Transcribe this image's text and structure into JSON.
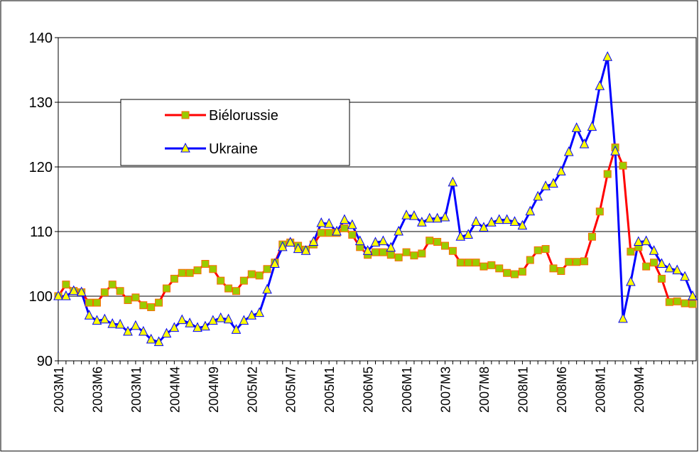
{
  "chart_data": {
    "type": "line",
    "categories": [
      "2003M1",
      null,
      null,
      null,
      null,
      "2003M6",
      null,
      null,
      null,
      null,
      "2003M1",
      null,
      null,
      null,
      null,
      "2004M4",
      null,
      null,
      null,
      null,
      "2004M9",
      null,
      null,
      null,
      null,
      "2005M2",
      null,
      null,
      null,
      null,
      "2005M7",
      null,
      null,
      null,
      null,
      "2005M1",
      null,
      null,
      null,
      null,
      "2006M5",
      null,
      null,
      null,
      null,
      "2006M1",
      null,
      null,
      null,
      null,
      "2007M3",
      null,
      null,
      null,
      null,
      "2007M8",
      null,
      null,
      null,
      null,
      "2008M1",
      null,
      null,
      null,
      null,
      "2008M6",
      null,
      null,
      null,
      null,
      "2008M1",
      null,
      null,
      null,
      null,
      "2009M4",
      null,
      null,
      null,
      null,
      null,
      null,
      null
    ],
    "series": [
      {
        "name": "Biélorussie",
        "color": "#ff0000",
        "marker": "square",
        "marker_fill": "#99cc00",
        "values": [
          100,
          101.8,
          100.8,
          100.6,
          99,
          99,
          100.6,
          101.8,
          100.8,
          99.4,
          99.8,
          98.6,
          98.3,
          99,
          101.2,
          102.7,
          103.6,
          103.6,
          104,
          105,
          104.2,
          102.4,
          101.2,
          100.8,
          102.4,
          103.4,
          103.2,
          104.2,
          105.2,
          108,
          108.3,
          107.8,
          107.2,
          108,
          109.8,
          109.8,
          109.8,
          110.5,
          109.5,
          107.6,
          106.4,
          106.8,
          106.8,
          106.4,
          106,
          106.8,
          106.3,
          106.6,
          108.6,
          108.4,
          107.8,
          107,
          105.2,
          105.2,
          105.2,
          104.6,
          104.8,
          104.3,
          103.6,
          103.4,
          103.8,
          105.6,
          107.1,
          107.3,
          104.3,
          103.9,
          105.3,
          105.3,
          105.4,
          109.2,
          113.1,
          118.9,
          123,
          120.2,
          106.9,
          107.6,
          104.6,
          105.2,
          102.7,
          99.1,
          99.2,
          98.9,
          98.8
        ]
      },
      {
        "name": "Ukraine",
        "color": "#0000ff",
        "marker": "triangle",
        "marker_fill": "#ffff00",
        "values": [
          100,
          100,
          100.8,
          100.6,
          97,
          96.2,
          96.4,
          95.7,
          95.6,
          94.5,
          95.4,
          94.5,
          93.3,
          92.9,
          94.2,
          95.1,
          96.3,
          95.8,
          95.1,
          95.3,
          96.2,
          96.6,
          96.4,
          94.8,
          96.2,
          97,
          97.4,
          101,
          105,
          107.6,
          108.3,
          107.3,
          107,
          108.4,
          111.3,
          111.2,
          110,
          111.8,
          111,
          108.5,
          107,
          108.3,
          108.5,
          107.5,
          110,
          112.5,
          112.4,
          111.4,
          112,
          112,
          112.2,
          117.6,
          109.2,
          109.5,
          111.5,
          110.6,
          111.4,
          111.8,
          111.8,
          111.5,
          110.9,
          113.1,
          115.4,
          117,
          117.4,
          119.3,
          122.3,
          126,
          123.5,
          126.2,
          132.5,
          137,
          122.4,
          96.5,
          102.2,
          108.4,
          108.5,
          107,
          105,
          104.3,
          104,
          103,
          100
        ]
      }
    ],
    "ylim": [
      90,
      140
    ],
    "yticks": [
      90,
      100,
      110,
      120,
      130,
      140
    ],
    "grid": true
  }
}
